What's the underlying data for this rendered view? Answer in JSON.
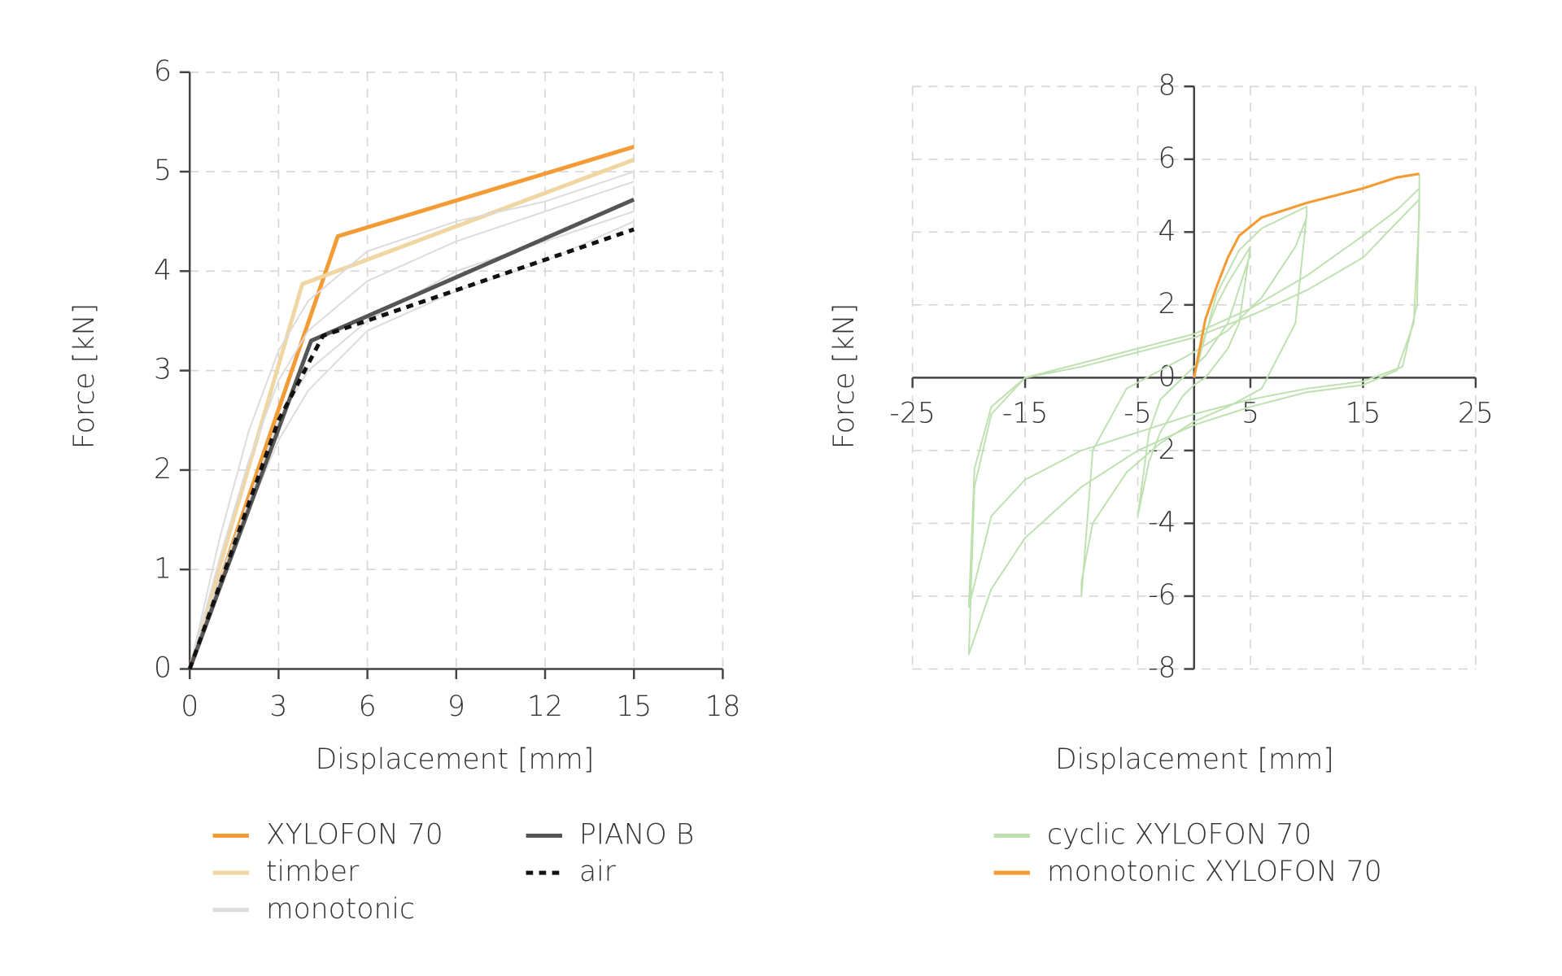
{
  "chart_data": [
    {
      "type": "line",
      "x_label": "Displacement [mm]",
      "y_label": "Force [kN]",
      "xlim": [
        0,
        18
      ],
      "xticks": [
        0,
        3,
        6,
        9,
        12,
        15,
        18
      ],
      "ylim": [
        0,
        6
      ],
      "yticks": [
        0,
        1,
        2,
        3,
        4,
        5,
        6
      ],
      "grid": true,
      "axis_position": "edge",
      "series": [
        {
          "name": "XYLOFON 70",
          "color": "#f39c35",
          "x": [
            0,
            5,
            15
          ],
          "values": [
            0,
            4.35,
            5.25
          ]
        },
        {
          "name": "timber",
          "color": "#efd6a2",
          "x": [
            0,
            3.8,
            15
          ],
          "values": [
            0,
            3.87,
            5.12
          ]
        },
        {
          "name": "monotonic",
          "color": "#dcdcdc",
          "curves": [
            {
              "x": [
                0,
                1,
                2,
                3,
                4,
                6,
                9,
                12,
                15
              ],
              "values": [
                0,
                1.1,
                2.1,
                2.9,
                3.4,
                3.9,
                4.3,
                4.6,
                4.9
              ]
            },
            {
              "x": [
                0,
                1,
                2,
                3,
                4,
                6,
                9,
                12,
                15
              ],
              "values": [
                0,
                0.9,
                1.7,
                2.5,
                3.0,
                3.5,
                4.0,
                4.3,
                4.6
              ]
            },
            {
              "x": [
                0,
                1,
                2,
                3,
                4,
                6,
                9,
                12,
                15
              ],
              "values": [
                0,
                1.3,
                2.4,
                3.2,
                3.7,
                4.2,
                4.5,
                4.7,
                5.0
              ]
            },
            {
              "x": [
                0,
                1,
                2,
                3,
                4,
                6,
                9,
                12,
                15
              ],
              "values": [
                0,
                0.8,
                1.6,
                2.3,
                2.8,
                3.4,
                3.8,
                4.1,
                4.5
              ]
            }
          ]
        },
        {
          "name": "PIANO B",
          "color": "#555555",
          "x": [
            0,
            4.1,
            15
          ],
          "values": [
            0,
            3.3,
            4.72
          ]
        },
        {
          "name": "air",
          "color": "#111111",
          "dash": true,
          "x": [
            0,
            3,
            4.5,
            15
          ],
          "values": [
            0,
            2.5,
            3.35,
            4.42
          ]
        }
      ]
    },
    {
      "type": "line",
      "x_label": "Displacement [mm]",
      "y_label": "Force [kN]",
      "xlim": [
        -25,
        25
      ],
      "xticks": [
        -25,
        -15,
        -5,
        5,
        15,
        25
      ],
      "ylim": [
        -8,
        8
      ],
      "yticks": [
        -8,
        -6,
        -4,
        -2,
        0,
        2,
        4,
        6,
        8
      ],
      "grid": true,
      "axis_position": "zero",
      "series": [
        {
          "name": "cyclic XYLOFON 70",
          "color": "#bfe0b0",
          "curves": [
            {
              "x": [
                0,
                1,
                2,
                3,
                4,
                5,
                4,
                3,
                1,
                0,
                -1,
                -3,
                -4,
                -5,
                -4,
                -3,
                -1,
                0,
                1,
                3,
                5
              ],
              "values": [
                0,
                1.2,
                2,
                2.6,
                3.1,
                3.6,
                1.5,
                0.8,
                0,
                -0.2,
                -0.5,
                -1.5,
                -2.3,
                -3.8,
                -1.5,
                -0.6,
                0,
                0.3,
                0.6,
                1.5,
                3.4
              ]
            },
            {
              "x": [
                0,
                2,
                4,
                6,
                8,
                10,
                10,
                9,
                6,
                3,
                0,
                -3,
                -6,
                -9,
                -10,
                -10,
                -9,
                -6,
                -3,
                0,
                3,
                6,
                9,
                10
              ],
              "values": [
                0,
                2.3,
                3.5,
                4.1,
                4.4,
                4.7,
                4.5,
                1.5,
                -0.3,
                -0.8,
                -1.2,
                -1.8,
                -2.6,
                -4,
                -5.6,
                -6,
                -2,
                -0.3,
                0.2,
                0.7,
                1.3,
                2.2,
                3.6,
                4.4
              ]
            },
            {
              "x": [
                20,
                20,
                19.5,
                18,
                15,
                10,
                5,
                0,
                -5,
                -10,
                -15,
                -18,
                -20,
                -19.5,
                -18,
                -15,
                -10,
                -5,
                0,
                5,
                10,
                15,
                18,
                20
              ],
              "values": [
                5.6,
                4.5,
                1.5,
                0.2,
                -0.2,
                -0.4,
                -0.8,
                -1.3,
                -2,
                -3,
                -4.4,
                -5.8,
                -7.6,
                -3,
                -1,
                0,
                0.4,
                0.8,
                1.2,
                1.9,
                2.8,
                3.9,
                4.6,
                5.2
              ]
            },
            {
              "x": [
                20,
                19.8,
                18.5,
                15,
                10,
                5,
                0,
                -5,
                -10,
                -15,
                -18,
                -20,
                -19.5,
                -18,
                -15,
                -10,
                -5,
                0,
                5,
                10,
                15,
                20
              ],
              "values": [
                5.2,
                2,
                0.3,
                -0.1,
                -0.3,
                -0.6,
                -1,
                -1.5,
                -2,
                -2.8,
                -3.8,
                -6.3,
                -2.5,
                -0.8,
                0,
                0.3,
                0.7,
                1.1,
                1.7,
                2.4,
                3.3,
                4.9
              ]
            }
          ]
        },
        {
          "name": "monotonic XYLOFON 70",
          "color": "#f39c35",
          "x": [
            0,
            0.5,
            1,
            2,
            3,
            4,
            6,
            10,
            15,
            18,
            20
          ],
          "values": [
            0,
            0.8,
            1.6,
            2.5,
            3.3,
            3.9,
            4.4,
            4.8,
            5.2,
            5.5,
            5.6
          ]
        }
      ]
    }
  ]
}
